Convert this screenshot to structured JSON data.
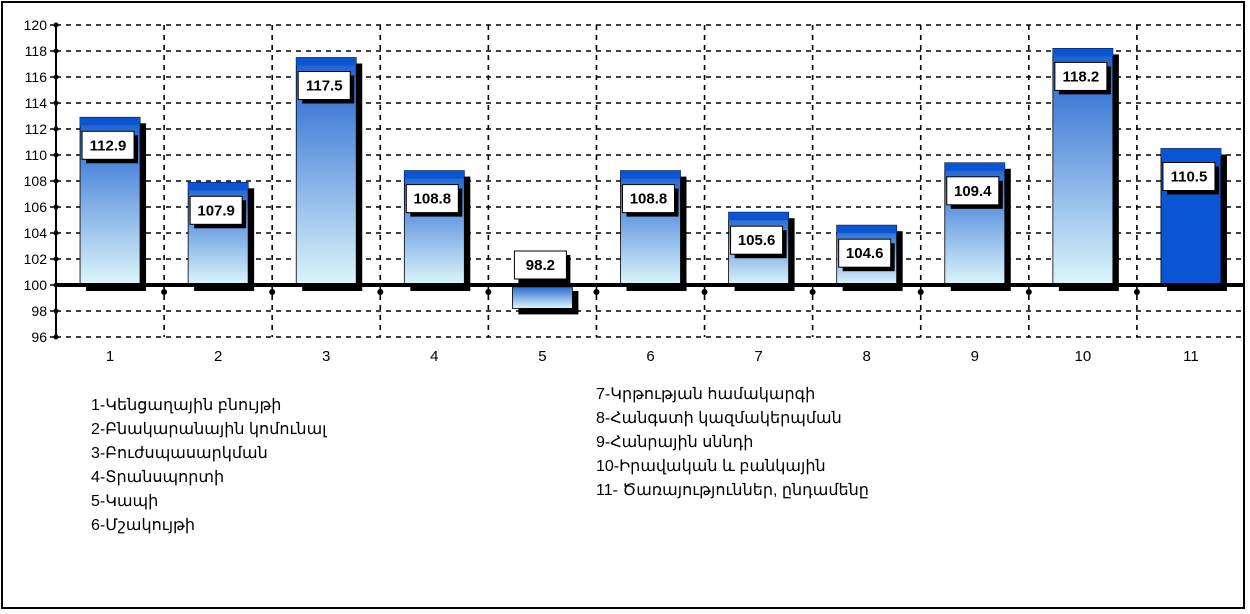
{
  "chart_data": {
    "type": "bar",
    "categories": [
      "1",
      "2",
      "3",
      "4",
      "5",
      "6",
      "7",
      "8",
      "9",
      "10",
      "11"
    ],
    "values": [
      112.9,
      107.9,
      117.5,
      108.8,
      98.2,
      108.8,
      105.6,
      104.6,
      109.4,
      118.2,
      110.5
    ],
    "baseline": 100,
    "ylim": [
      96,
      120
    ],
    "yticks": [
      "96",
      "98",
      "100",
      "102",
      "104",
      "106",
      "108",
      "110",
      "112",
      "114",
      "116",
      "118",
      "120"
    ],
    "data_labels": [
      "112.9",
      "107.9",
      "117.5",
      "108.8",
      "98.2",
      "108.8",
      "105.6",
      "104.6",
      "109.4",
      "118.2",
      "110.5"
    ],
    "grid": true,
    "colors": {
      "bar_top": "#1a5fcf",
      "bar_bottom": "#ddf6fb",
      "highlight": "#0a55d4",
      "cap": "#0a55d4"
    },
    "highlight_index": 10
  },
  "legend": {
    "left": [
      "1-Կենցաղային բնույթի",
      "2-Բնակարանային կոմունալ",
      "3-Բուժսպասարկման",
      "4-Տրանսպորտի",
      "5-Կապի",
      "6-Մշակույթի"
    ],
    "right": [
      "7-Կրթության համակարգի",
      "8-Հանգստի կազմակերպման",
      "9-Հանրային սննդի",
      "10-Իրավական և բանկային",
      "11- Ծառայություններ, ընդամենը"
    ]
  }
}
